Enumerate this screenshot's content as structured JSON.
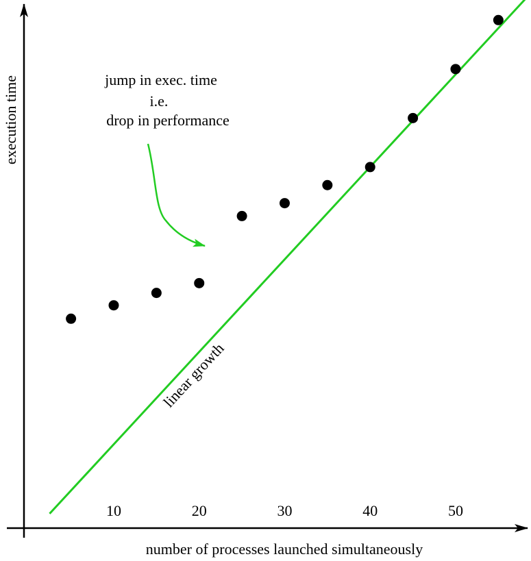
{
  "chart_data": {
    "type": "scatter",
    "title": "",
    "xlabel": "number of processes launched simultaneously",
    "ylabel": "execution time",
    "x_ticks": [
      10,
      20,
      30,
      40,
      50
    ],
    "xlim": [
      -0.5,
      58.5
    ],
    "ylim": [
      0,
      100
    ],
    "grid": false,
    "points": [
      {
        "x": 5,
        "y": 40.6
      },
      {
        "x": 10,
        "y": 43.2
      },
      {
        "x": 15,
        "y": 45.6
      },
      {
        "x": 20,
        "y": 47.5
      },
      {
        "x": 25,
        "y": 60.5
      },
      {
        "x": 30,
        "y": 63.0
      },
      {
        "x": 35,
        "y": 66.5
      },
      {
        "x": 40,
        "y": 70.0
      },
      {
        "x": 45,
        "y": 79.5
      },
      {
        "x": 50,
        "y": 89.0
      },
      {
        "x": 55,
        "y": 98.5
      }
    ],
    "trend_line": {
      "label": "linear growth",
      "from": {
        "x": 2.5,
        "y": 2.8
      },
      "to": {
        "x": 58.5,
        "y": 103.2
      },
      "color": "#22cc22"
    },
    "annotation": {
      "lines": [
        "jump in exec. time",
        "i.e.",
        "drop in performance"
      ],
      "arrow_color": "#22cc22"
    }
  }
}
